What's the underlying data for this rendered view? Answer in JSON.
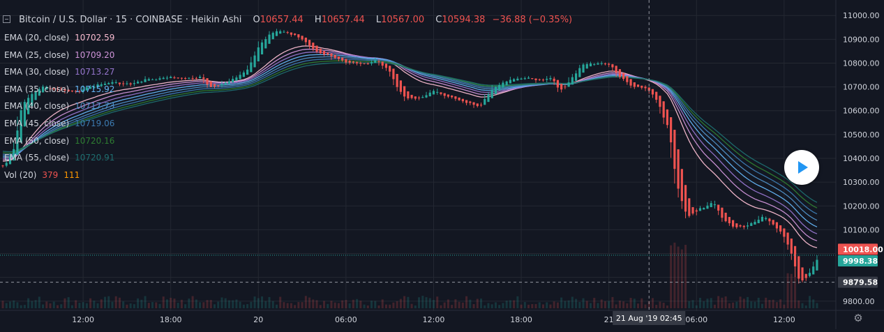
{
  "header": {
    "symbol": "Bitcoin / U.S. Dollar",
    "interval": "15",
    "exchange": "COINBASE",
    "chart_style": "Heikin Ashi",
    "ohlc": [
      {
        "label": "O",
        "value": "10657.44"
      },
      {
        "label": "H",
        "value": "10657.44"
      },
      {
        "label": "L",
        "value": "10567.00"
      },
      {
        "label": "C",
        "value": "10594.38"
      }
    ],
    "change": "−36.88 (−0.35%)"
  },
  "legend": [
    {
      "name": "EMA (20, close)",
      "value": "10702.59",
      "color": "#f8bbd0"
    },
    {
      "name": "EMA (25, close)",
      "value": "10709.20",
      "color": "#ce93d8"
    },
    {
      "name": "EMA (30, close)",
      "value": "10713.27",
      "color": "#9575cd"
    },
    {
      "name": "EMA (35, close)",
      "value": "10715.92",
      "color": "#64b5f6"
    },
    {
      "name": "EMA (40, close)",
      "value": "10717.73",
      "color": "#4f8fc6"
    },
    {
      "name": "EMA (45, close)",
      "value": "10719.06",
      "color": "#3c7ab0"
    },
    {
      "name": "EMA (50, close)",
      "value": "10720.16",
      "color": "#2e7d32"
    },
    {
      "name": "EMA (55, close)",
      "value": "10720.91",
      "color": "#1e6e70"
    }
  ],
  "volume": {
    "name": "Vol (20)",
    "values": [
      "379",
      "111"
    ],
    "colors": [
      "#ef5350",
      "#ff9800"
    ]
  },
  "price_labels": {
    "last_price": "10018.00",
    "ema_value": "9998.38",
    "crosshair_price": "9879.58"
  },
  "time_labels": {
    "crosshair_time": "21 Aug '19   02:45"
  },
  "colors": {
    "background": "#131722",
    "grid": "#242832",
    "up": "#26a69a",
    "down": "#ef5350",
    "ema_badge": "#26a69a",
    "crosshair_badge": "#363a45"
  },
  "icons": {
    "play": "play-icon",
    "settings": "gear-icon"
  },
  "chart_data": {
    "type": "candlestick",
    "style": "Heikin Ashi",
    "y_range": [
      9770,
      11030
    ],
    "y_ticks": [
      9800,
      9900,
      10000,
      10100,
      10200,
      10300,
      10400,
      10500,
      10600,
      10700,
      10800,
      10900,
      11000
    ],
    "y_tick_labels": [
      "9800.00",
      "",
      "",
      "10100.00",
      "10200.00",
      "10300.00",
      "10400.00",
      "10500.00",
      "10600.00",
      "10700.00",
      "10800.00",
      "10900.00",
      "11000.00"
    ],
    "x_ticks": [
      {
        "hours": 12,
        "label": "12:00"
      },
      {
        "hours": 18,
        "label": "18:00"
      },
      {
        "hours": 24,
        "label": "20"
      },
      {
        "hours": 30,
        "label": "06:00"
      },
      {
        "hours": 36,
        "label": "12:00"
      },
      {
        "hours": 42,
        "label": "18:00"
      },
      {
        "hours": 48,
        "label": "21"
      },
      {
        "hours": 54,
        "label": "06:00"
      },
      {
        "hours": 60,
        "label": "12:00"
      }
    ],
    "x_start_hours": 6.5,
    "x_end_hours": 62.3,
    "bar_minutes": 15,
    "crosshair": {
      "hours": 50.75,
      "price": 9879.58
    },
    "price_path": [
      [
        6.5,
        10370
      ],
      [
        7.2,
        10440
      ],
      [
        7.6,
        10620
      ],
      [
        8.2,
        10660
      ],
      [
        9.0,
        10700
      ],
      [
        10.0,
        10695
      ],
      [
        11.0,
        10680
      ],
      [
        12.0,
        10690
      ],
      [
        13.0,
        10710
      ],
      [
        14.0,
        10720
      ],
      [
        15.0,
        10710
      ],
      [
        16.0,
        10730
      ],
      [
        17.0,
        10735
      ],
      [
        18.0,
        10740
      ],
      [
        19.0,
        10735
      ],
      [
        20.0,
        10745
      ],
      [
        20.6,
        10700
      ],
      [
        21.3,
        10705
      ],
      [
        22.0,
        10730
      ],
      [
        23.0,
        10760
      ],
      [
        23.5,
        10820
      ],
      [
        24.0,
        10880
      ],
      [
        24.6,
        10920
      ],
      [
        25.2,
        10930
      ],
      [
        26.0,
        10920
      ],
      [
        26.8,
        10910
      ],
      [
        27.5,
        10870
      ],
      [
        28.0,
        10840
      ],
      [
        29.0,
        10830
      ],
      [
        30.0,
        10800
      ],
      [
        31.0,
        10795
      ],
      [
        32.0,
        10810
      ],
      [
        32.8,
        10780
      ],
      [
        33.4,
        10690
      ],
      [
        34.0,
        10650
      ],
      [
        35.0,
        10660
      ],
      [
        36.0,
        10680
      ],
      [
        37.0,
        10660
      ],
      [
        38.0,
        10640
      ],
      [
        39.0,
        10620
      ],
      [
        39.5,
        10660
      ],
      [
        40.0,
        10700
      ],
      [
        41.0,
        10730
      ],
      [
        42.0,
        10735
      ],
      [
        43.0,
        10730
      ],
      [
        44.0,
        10740
      ],
      [
        44.5,
        10690
      ],
      [
        45.0,
        10710
      ],
      [
        46.0,
        10790
      ],
      [
        47.0,
        10800
      ],
      [
        48.0,
        10790
      ],
      [
        48.6,
        10740
      ],
      [
        49.5,
        10700
      ],
      [
        50.5,
        10690
      ],
      [
        51.2,
        10640
      ],
      [
        52.0,
        10520
      ],
      [
        52.5,
        10300
      ],
      [
        53.2,
        10150
      ],
      [
        54.0,
        10180
      ],
      [
        55.0,
        10220
      ],
      [
        55.6,
        10150
      ],
      [
        56.5,
        10110
      ],
      [
        57.5,
        10120
      ],
      [
        58.5,
        10160
      ],
      [
        59.0,
        10130
      ],
      [
        59.8,
        10080
      ],
      [
        60.4,
        10000
      ],
      [
        60.9,
        9880
      ],
      [
        61.5,
        9900
      ],
      [
        62.3,
        10000
      ]
    ]
  }
}
